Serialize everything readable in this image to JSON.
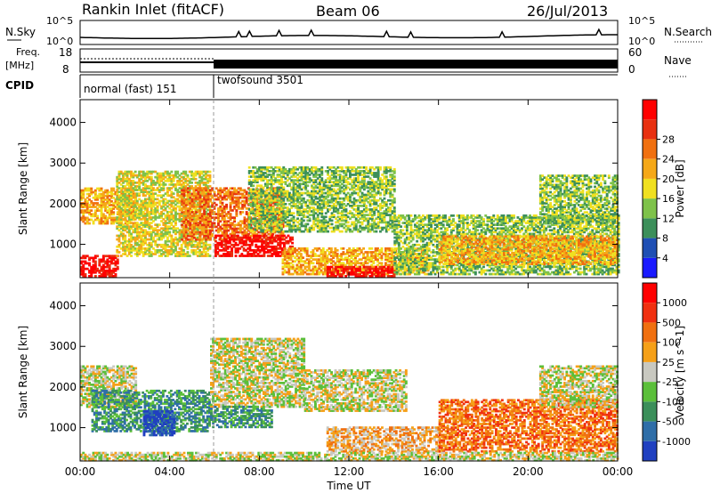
{
  "header": {
    "station": "Rankin Inlet (fitACF)",
    "beam": "Beam 06",
    "date": "26/Jul/2013"
  },
  "strip": {
    "nsky_label": "N.Sky",
    "nsky_ticks": [
      "10^5",
      "10^0"
    ],
    "nsearch_label": "N.Search",
    "nsearch_ticks": [
      "10^5",
      "10^0"
    ],
    "freq_label_1": "Freq.",
    "freq_label_2": "[MHz]",
    "freq_ticks": [
      "18",
      "8"
    ],
    "nave_label": "Nave",
    "nave_ticks": [
      "60",
      "0"
    ],
    "cpid_label": "CPID",
    "cpid_modes": [
      {
        "label": "normal (fast) 151",
        "start_hour": 0,
        "end_hour": 6
      },
      {
        "label": "twofsound 3501",
        "start_hour": 6,
        "end_hour": 24
      }
    ]
  },
  "chart_data": [
    {
      "type": "heatmap",
      "panel": "power",
      "ylabel": "Slant Range [km]",
      "xlim": [
        0,
        24
      ],
      "ylim": [
        180,
        4560
      ],
      "yticks": [
        1000,
        2000,
        3000,
        4000
      ],
      "colorbar": {
        "label": "Power [dB]",
        "ticks": [
          "4",
          "8",
          "12",
          "16",
          "20",
          "24",
          "28"
        ],
        "colors": [
          "#1a1aff",
          "#1f4fb4",
          "#3c8f5a",
          "#7ec24a",
          "#f0e020",
          "#f5a818",
          "#f07010",
          "#e83010",
          "#ff0000"
        ]
      },
      "echo_regions": [
        {
          "t0": 0.0,
          "t1": 1.7,
          "r0": 200,
          "r1": 700,
          "level": 8
        },
        {
          "t0": 0.0,
          "t1": 2.5,
          "r0": 1500,
          "r1": 2400,
          "level": 5
        },
        {
          "t0": 1.6,
          "t1": 5.8,
          "r0": 700,
          "r1": 2800,
          "level": 4
        },
        {
          "t0": 4.5,
          "t1": 9.0,
          "r0": 1100,
          "r1": 2400,
          "level": 6
        },
        {
          "t0": 6.0,
          "t1": 9.5,
          "r0": 700,
          "r1": 1200,
          "level": 8
        },
        {
          "t0": 7.5,
          "t1": 14.0,
          "r0": 1300,
          "r1": 2900,
          "level": 3
        },
        {
          "t0": 9.0,
          "t1": 15.5,
          "r0": 250,
          "r1": 900,
          "level": 5
        },
        {
          "t0": 11.0,
          "t1": 14.0,
          "r0": 200,
          "r1": 450,
          "level": 8
        },
        {
          "t0": 14.0,
          "t1": 24.0,
          "r0": 250,
          "r1": 1700,
          "level": 3
        },
        {
          "t0": 16.0,
          "t1": 24.0,
          "r0": 500,
          "r1": 1200,
          "level": 5
        },
        {
          "t0": 20.5,
          "t1": 24.0,
          "r0": 1500,
          "r1": 2700,
          "level": 3
        }
      ]
    },
    {
      "type": "heatmap",
      "panel": "velocity",
      "ylabel": "Slant Range [km]",
      "xlabel": "Time UT",
      "xlim": [
        0,
        24
      ],
      "ylim": [
        180,
        4560
      ],
      "xticks": [
        "00:00",
        "04:00",
        "08:00",
        "12:00",
        "16:00",
        "20:00",
        "00:00"
      ],
      "yticks": [
        1000,
        2000,
        3000,
        4000
      ],
      "colorbar": {
        "label": "Velocity [m s^-1]",
        "ticks": [
          "1000",
          "500",
          "100",
          "25",
          "-25",
          "-100",
          "-500",
          "-1000"
        ],
        "colors": [
          "#2040c0",
          "#2f6ea8",
          "#3b8f5a",
          "#5bbf3a",
          "#c8c8c0",
          "#f5a018",
          "#f07010",
          "#f03010",
          "#ff0000"
        ]
      },
      "echo_regions": [
        {
          "t0": 0.0,
          "t1": 2.5,
          "r0": 1500,
          "r1": 2500,
          "level": 4
        },
        {
          "t0": 0.5,
          "t1": 5.8,
          "r0": 900,
          "r1": 1900,
          "level": 2
        },
        {
          "t0": 2.8,
          "t1": 4.2,
          "r0": 800,
          "r1": 1400,
          "level": 0
        },
        {
          "t0": 5.8,
          "t1": 10.0,
          "r0": 1500,
          "r1": 3200,
          "level": 4
        },
        {
          "t0": 5.8,
          "t1": 8.5,
          "r0": 1000,
          "r1": 1500,
          "level": 2
        },
        {
          "t0": 10.0,
          "t1": 14.5,
          "r0": 1400,
          "r1": 2400,
          "level": 4
        },
        {
          "t0": 11.0,
          "t1": 16.0,
          "r0": 400,
          "r1": 1000,
          "level": 5
        },
        {
          "t0": 16.0,
          "t1": 24.0,
          "r0": 400,
          "r1": 1700,
          "level": 6
        },
        {
          "t0": 20.5,
          "t1": 24.0,
          "r0": 1500,
          "r1": 2500,
          "level": 4
        },
        {
          "t0": 0.0,
          "t1": 24.0,
          "r0": 180,
          "r1": 400,
          "level": 4
        }
      ]
    }
  ]
}
